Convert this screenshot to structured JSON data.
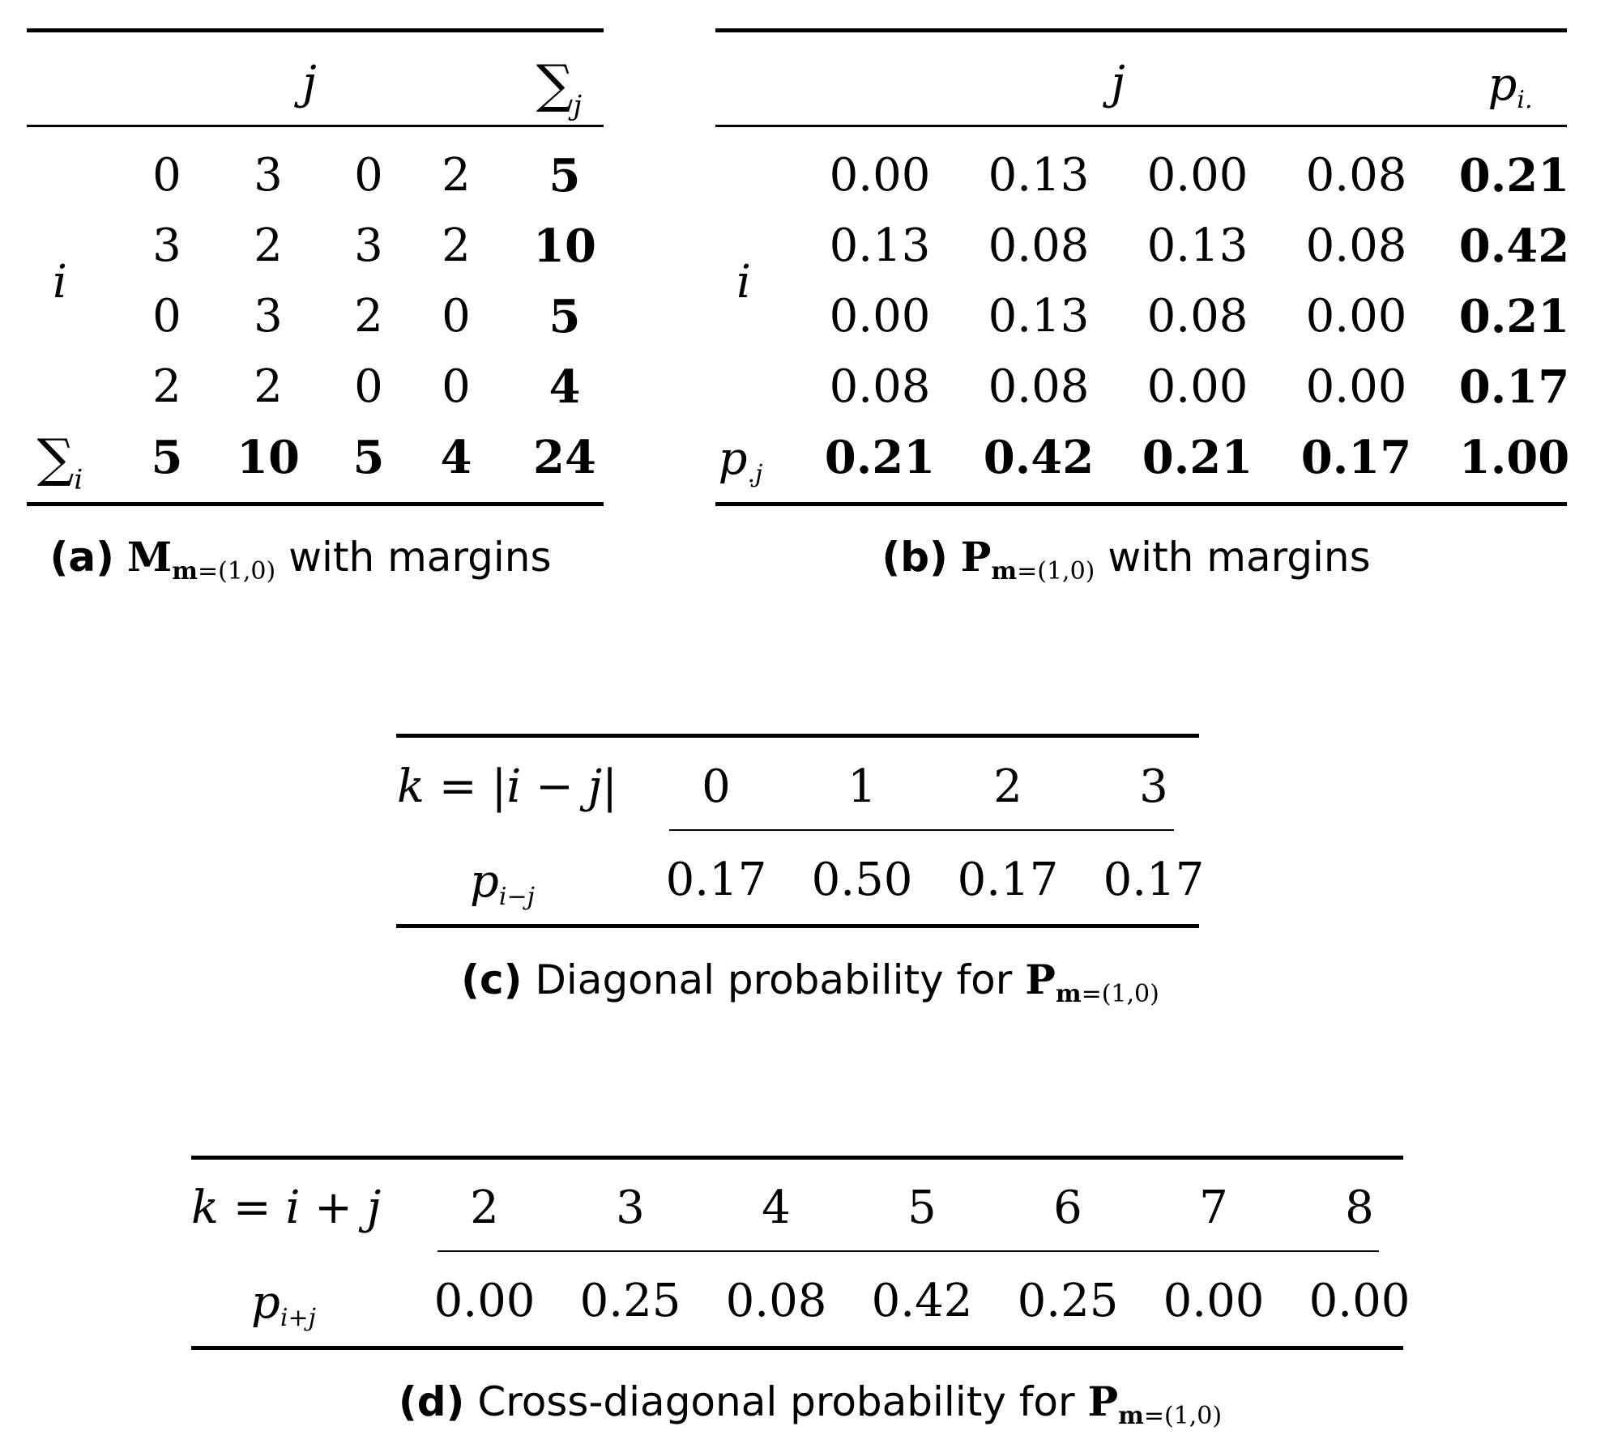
{
  "table_a": {
    "col_header": "j",
    "sum_header_symbol": "∑",
    "sum_header_sub": "j",
    "row_header": "i",
    "rows": [
      {
        "cells": [
          "0",
          "3",
          "0",
          "2"
        ],
        "sum": "5"
      },
      {
        "cells": [
          "3",
          "2",
          "3",
          "2"
        ],
        "sum": "10"
      },
      {
        "cells": [
          "0",
          "3",
          "2",
          "0"
        ],
        "sum": "5"
      },
      {
        "cells": [
          "2",
          "2",
          "0",
          "0"
        ],
        "sum": "4"
      }
    ],
    "sum_row_symbol": "∑",
    "sum_row_sub": "i",
    "sum_row": [
      "5",
      "10",
      "5",
      "4",
      "24"
    ],
    "caption_label": "(a)",
    "caption_math": "M",
    "caption_sub_bold": "m",
    "caption_sub_rest": "=(1,0)",
    "caption_text": "with margins"
  },
  "table_b": {
    "col_header": "j",
    "margin_header": "p",
    "margin_header_sub": "i.",
    "row_header": "i",
    "rows": [
      {
        "cells": [
          "0.00",
          "0.13",
          "0.00",
          "0.08"
        ],
        "sum": "0.21"
      },
      {
        "cells": [
          "0.13",
          "0.08",
          "0.13",
          "0.08"
        ],
        "sum": "0.42"
      },
      {
        "cells": [
          "0.00",
          "0.13",
          "0.08",
          "0.00"
        ],
        "sum": "0.21"
      },
      {
        "cells": [
          "0.08",
          "0.08",
          "0.00",
          "0.00"
        ],
        "sum": "0.17"
      }
    ],
    "sum_row_label": "p",
    "sum_row_label_sub": ".j",
    "sum_row": [
      "0.21",
      "0.42",
      "0.21",
      "0.17",
      "1.00"
    ],
    "caption_label": "(b)",
    "caption_math": "P",
    "caption_sub_bold": "m",
    "caption_sub_rest": "=(1,0)",
    "caption_text": "with margins"
  },
  "table_c": {
    "k_label": "k = |i − j|",
    "k_values": [
      "0",
      "1",
      "2",
      "3"
    ],
    "p_label": "p",
    "p_label_sub": "i−j",
    "p_values": [
      "0.17",
      "0.50",
      "0.17",
      "0.17"
    ],
    "caption_label": "(c)",
    "caption_text": "Diagonal probability for",
    "caption_math": "P",
    "caption_sub_bold": "m",
    "caption_sub_rest": "=(1,0)"
  },
  "table_d": {
    "k_label": "k = i + j",
    "k_values": [
      "2",
      "3",
      "4",
      "5",
      "6",
      "7",
      "8"
    ],
    "p_label": "p",
    "p_label_sub": "i+j",
    "p_values": [
      "0.00",
      "0.25",
      "0.08",
      "0.42",
      "0.25",
      "0.00",
      "0.00"
    ],
    "caption_label": "(d)",
    "caption_text": "Cross-diagonal probability for",
    "caption_math": "P",
    "caption_sub_bold": "m",
    "caption_sub_rest": "=(1,0)"
  }
}
